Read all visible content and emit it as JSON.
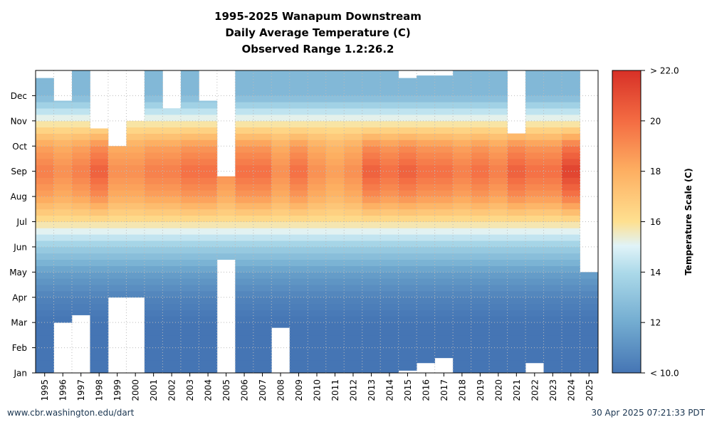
{
  "title_lines": [
    "1995-2025 Wanapum Downstream",
    "Daily Average Temperature (C)",
    "Observed Range 1.2:26.2"
  ],
  "footer": {
    "left": "www.cbr.washington.edu/dart",
    "right": "30 Apr 2025 07:21:33 PDT"
  },
  "chart_data": {
    "type": "heatmap",
    "title": "1995-2025 Wanapum Downstream",
    "subtitle": "Daily Average Temperature (C) | Observed Range 1.2:26.2",
    "x_labels": [
      "1995",
      "1996",
      "1997",
      "1998",
      "1999",
      "2000",
      "2001",
      "2002",
      "2003",
      "2004",
      "2005",
      "2006",
      "2007",
      "2008",
      "2009",
      "2010",
      "2011",
      "2012",
      "2013",
      "2014",
      "2015",
      "2016",
      "2017",
      "2018",
      "2019",
      "2020",
      "2021",
      "2022",
      "2023",
      "2024",
      "2025"
    ],
    "y_labels": [
      "Jan",
      "Feb",
      "Mar",
      "Apr",
      "May",
      "Jun",
      "Jul",
      "Aug",
      "Sep",
      "Oct",
      "Nov",
      "Dec"
    ],
    "colorbar": {
      "label": "Temperature Scale (C)",
      "min": 10,
      "max": 22,
      "ticks": [
        10,
        12,
        14,
        16,
        18,
        20,
        22
      ],
      "tick_labels": [
        "< 10.0",
        "12",
        "14",
        "16",
        "18",
        "20",
        "> 22.0"
      ]
    },
    "grid": true,
    "monthly_profile_c": [
      10,
      10,
      10,
      10.5,
      11.5,
      13.5,
      16,
      18,
      19,
      18,
      15.5,
      12.5
    ],
    "years": [
      {
        "year": "1995",
        "start_month": 1,
        "end_month": 12.7,
        "peak_c": 19.5
      },
      {
        "year": "1996",
        "start_month": 3,
        "end_month": 11.8,
        "peak_c": 19.0
      },
      {
        "year": "1997",
        "start_month": 3.3,
        "end_month": 13,
        "peak_c": 19.5
      },
      {
        "year": "1998",
        "start_month": 1,
        "end_month": 10.7,
        "peak_c": 20.5
      },
      {
        "year": "1999",
        "start_month": 4,
        "end_month": 10,
        "peak_c": 19.0
      },
      {
        "year": "2000",
        "start_month": 4,
        "end_month": 11,
        "peak_c": 19.0
      },
      {
        "year": "2001",
        "start_month": 1,
        "end_month": 13,
        "peak_c": 19.5
      },
      {
        "year": "2002",
        "start_month": 1,
        "end_month": 11.5,
        "peak_c": 19.5
      },
      {
        "year": "2003",
        "start_month": 1,
        "end_month": 13,
        "peak_c": 20.0
      },
      {
        "year": "2004",
        "start_month": 1,
        "end_month": 11.8,
        "peak_c": 20.0
      },
      {
        "year": "2005",
        "start_month": 5.5,
        "end_month": 8.8,
        "peak_c": 19.0
      },
      {
        "year": "2006",
        "start_month": 1,
        "end_month": 13,
        "peak_c": 20.0
      },
      {
        "year": "2007",
        "start_month": 1,
        "end_month": 13,
        "peak_c": 20.0
      },
      {
        "year": "2008",
        "start_month": 2.8,
        "end_month": 13,
        "peak_c": 19.0
      },
      {
        "year": "2009",
        "start_month": 1,
        "end_month": 13,
        "peak_c": 20.0
      },
      {
        "year": "2010",
        "start_month": 1,
        "end_month": 13,
        "peak_c": 19.0
      },
      {
        "year": "2011",
        "start_month": 1,
        "end_month": 13,
        "peak_c": 18.5
      },
      {
        "year": "2012",
        "start_month": 1,
        "end_month": 13,
        "peak_c": 19.0
      },
      {
        "year": "2013",
        "start_month": 1,
        "end_month": 13,
        "peak_c": 20.5
      },
      {
        "year": "2014",
        "start_month": 1,
        "end_month": 13,
        "peak_c": 20.0
      },
      {
        "year": "2015",
        "start_month": 1.1,
        "end_month": 12.7,
        "peak_c": 20.5
      },
      {
        "year": "2016",
        "start_month": 1.4,
        "end_month": 12.8,
        "peak_c": 20.0
      },
      {
        "year": "2017",
        "start_month": 1.6,
        "end_month": 12.8,
        "peak_c": 20.0
      },
      {
        "year": "2018",
        "start_month": 1,
        "end_month": 13,
        "peak_c": 19.5
      },
      {
        "year": "2019",
        "start_month": 1,
        "end_month": 13,
        "peak_c": 20.0
      },
      {
        "year": "2020",
        "start_month": 1,
        "end_month": 13,
        "peak_c": 19.5
      },
      {
        "year": "2021",
        "start_month": 1,
        "end_month": 10.5,
        "peak_c": 20.5
      },
      {
        "year": "2022",
        "start_month": 1.4,
        "end_month": 13,
        "peak_c": 20.0
      },
      {
        "year": "2023",
        "start_month": 1,
        "end_month": 13,
        "peak_c": 20.0
      },
      {
        "year": "2024",
        "start_month": 1,
        "end_month": 13,
        "peak_c": 21.5
      },
      {
        "year": "2025",
        "start_month": 1,
        "end_month": 5,
        "peak_c": 10.0
      }
    ]
  }
}
